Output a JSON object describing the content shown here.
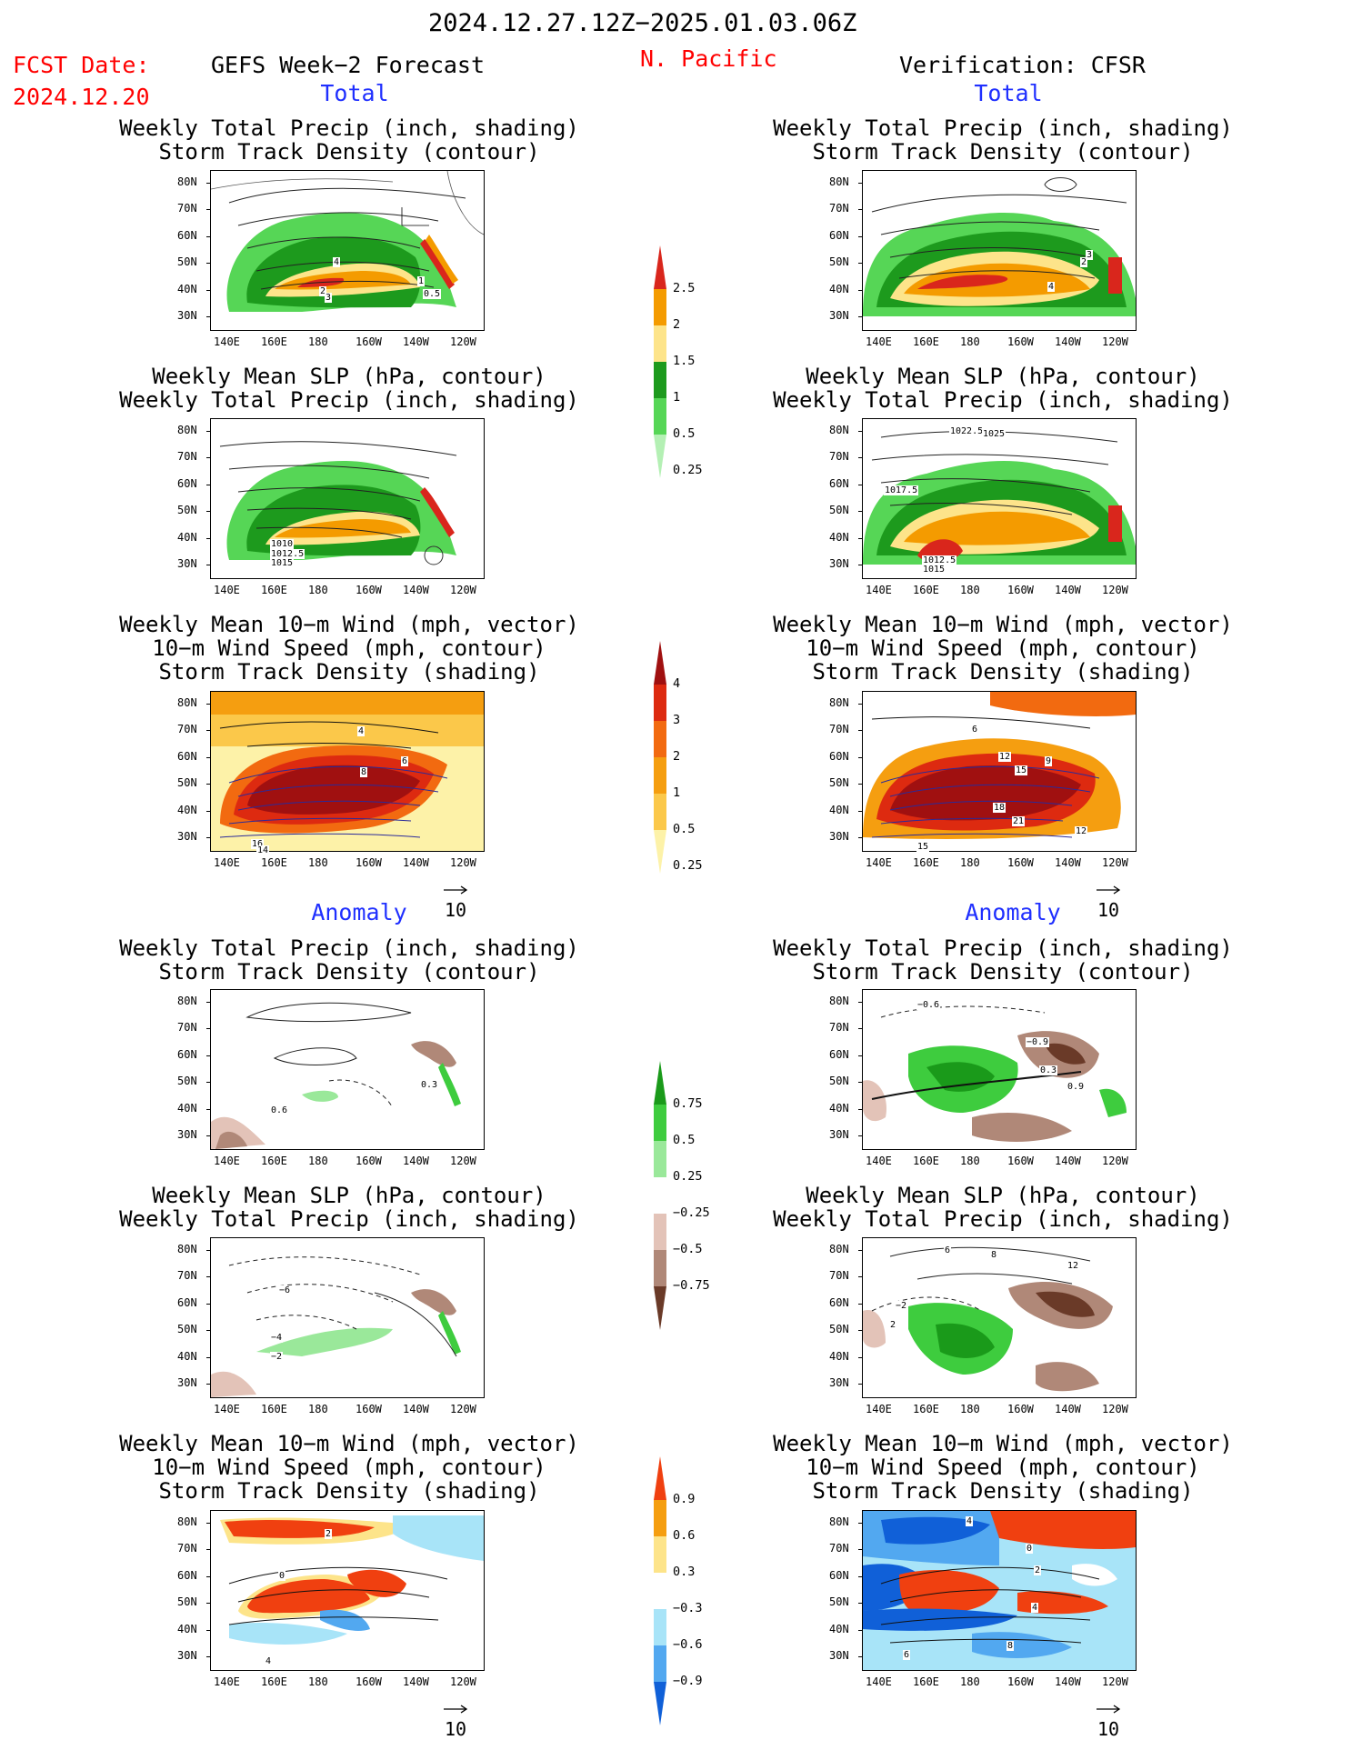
{
  "header": {
    "period": "2024.12.27.12Z−2025.01.03.06Z",
    "fcst_date_label": "FCST Date:",
    "fcst_date_value": "2024.12.20",
    "forecast_title": "GEFS Week−2 Forecast",
    "region": "N. Pacific",
    "verification": "Verification: CFSR"
  },
  "sections": {
    "total": "Total",
    "anomaly": "Anomaly"
  },
  "panel_titles": {
    "precip_track": [
      "Weekly Total Precip (inch, shading)",
      "Storm Track Density (contour)"
    ],
    "slp_precip": [
      "Weekly Mean SLP (hPa, contour)",
      "Weekly Total Precip (inch, shading)"
    ],
    "wind_track": [
      "Weekly Mean 10−m Wind (mph, vector)",
      "10−m Wind Speed (mph, contour)",
      "Storm Track Density (shading)"
    ]
  },
  "axes": {
    "lat_labels": [
      "80N",
      "70N",
      "60N",
      "50N",
      "40N",
      "30N"
    ],
    "lon_labels": [
      "140E",
      "160E",
      "180",
      "160W",
      "140W",
      "120W"
    ]
  },
  "vector_reference": "10",
  "colorbars": {
    "precip_total": {
      "labels": [
        "2.5",
        "2",
        "1.5",
        "1",
        "0.5",
        "0.25"
      ],
      "colors": [
        "#d9261c",
        "#f49b00",
        "#fde48a",
        "#1d9a1d",
        "#56d656",
        "#b4f0b4"
      ]
    },
    "track_total": {
      "labels": [
        "4",
        "3",
        "2",
        "1",
        "0.5",
        "0.25"
      ],
      "colors": [
        "#a01010",
        "#dd2a10",
        "#f26a10",
        "#f59e10",
        "#fbc84a",
        "#fdf2a8"
      ]
    },
    "precip_anom": {
      "labels": [
        "0.75",
        "0.5",
        "0.25",
        "−0.25",
        "−0.5",
        "−0.75"
      ],
      "colors": [
        "#1a9a1a",
        "#3ecc3e",
        "#9ae89a",
        "#ffffff",
        "#e3c3b8",
        "#b08878",
        "#6a3a28"
      ]
    },
    "track_anom": {
      "labels": [
        "0.9",
        "0.6",
        "0.3",
        "−0.3",
        "−0.6",
        "−0.9"
      ],
      "colors": [
        "#f04010",
        "#f59e10",
        "#fde48a",
        "#ffffff",
        "#a8e4f8",
        "#52a8f0",
        "#1060d8"
      ]
    }
  },
  "contour_labels": {
    "fc_precip_total": [
      "4",
      "1",
      "0.5",
      "2",
      "3"
    ],
    "ob_precip_total": [
      "4",
      "2",
      "3"
    ],
    "fc_slp_total": [
      "1015",
      "1012.5",
      "1010"
    ],
    "ob_slp_total": [
      "1022.5",
      "1025",
      "1017.5",
      "1015",
      "1012.5"
    ],
    "fc_wind_total": [
      "4",
      "8",
      "6",
      "16",
      "14"
    ],
    "ob_wind_total": [
      "6",
      "12",
      "9",
      "15",
      "18",
      "21",
      "12",
      "15"
    ],
    "fc_precip_anom": [
      "0.3",
      "0.6"
    ],
    "ob_precip_anom": [
      "−0.6",
      "−0.9",
      "0.3",
      "0.9"
    ],
    "fc_slp_anom": [
      "−6",
      "−4",
      "−2"
    ],
    "ob_slp_anom": [
      "6",
      "8",
      "12",
      "−2",
      "2"
    ],
    "fc_wind_anom": [
      "2",
      "0",
      "4"
    ],
    "ob_wind_anom": [
      "4",
      "0",
      "2",
      "4",
      "8",
      "6"
    ]
  }
}
